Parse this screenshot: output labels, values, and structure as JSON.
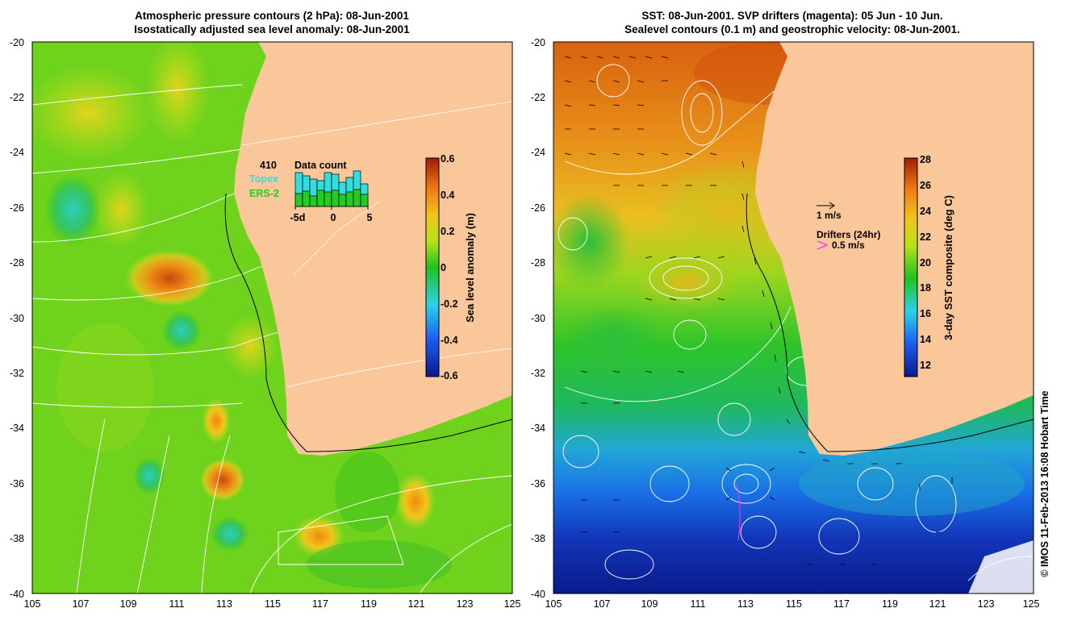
{
  "left_panel": {
    "title_line1": "Atmospheric pressure contours (2 hPa): 08-Jun-2001",
    "title_line2": "Isostatically adjusted sea level anomaly: 08-Jun-2001",
    "y_ticks": [
      "-20",
      "-22",
      "-24",
      "-26",
      "-28",
      "-30",
      "-32",
      "-34",
      "-36",
      "-38",
      "-40"
    ],
    "x_ticks": [
      "105",
      "107",
      "109",
      "111",
      "113",
      "115",
      "117",
      "119",
      "121",
      "123",
      "125"
    ],
    "colorbar": {
      "label": "Sea level anomaly (m)",
      "ticks": [
        "0.6",
        "0.4",
        "0.2",
        "0",
        "-0.2",
        "-0.4",
        "-0.6"
      ],
      "range": [
        -0.6,
        0.6
      ]
    },
    "data_count": {
      "total": "410",
      "topex_label": "Topex",
      "ers_label": "ERS-2",
      "title": "Data count",
      "axis_ticks": [
        "-5d",
        "0",
        "5"
      ],
      "topex_color": "#33dddd",
      "ers_color": "#22cc22"
    }
  },
  "right_panel": {
    "title_line1": "SST: 08-Jun-2001. SVP drifters (magenta): 05 Jun - 10 Jun.",
    "title_line2": "Sealevel contours (0.1 m) and geostrophic velocity: 08-Jun-2001.",
    "y_ticks": [
      "-20",
      "-22",
      "-24",
      "-26",
      "-28",
      "-30",
      "-32",
      "-34",
      "-36",
      "-38",
      "-40"
    ],
    "x_ticks": [
      "105",
      "107",
      "109",
      "111",
      "113",
      "115",
      "117",
      "119",
      "121",
      "123",
      "125"
    ],
    "colorbar": {
      "label": "3-day SST composite (deg C)",
      "ticks": [
        "28",
        "26",
        "24",
        "22",
        "20",
        "18",
        "16",
        "14",
        "12"
      ],
      "range": [
        11,
        28
      ]
    },
    "legend": {
      "velocity_label": "1 m/s",
      "drifters_label": "Drifters (24hr)",
      "drifter_speed_label": "0.5 m/s",
      "drifter_color": "#ff33ff"
    }
  },
  "credit": "© IMOS 11-Feb-2013 16:08 Hobart Time",
  "colors": {
    "land": "#f9c79a",
    "contour": "#ffffff"
  }
}
